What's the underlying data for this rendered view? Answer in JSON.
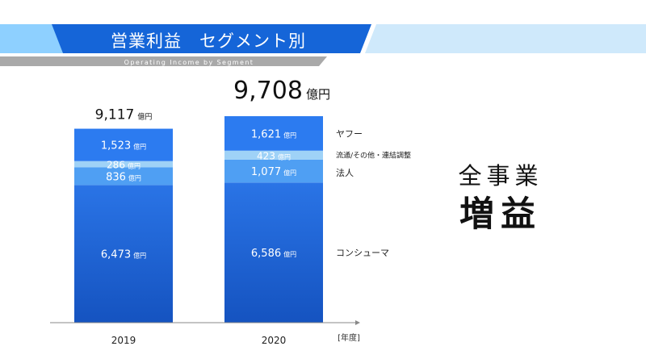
{
  "header": {
    "title": "営業利益　セグメント別",
    "subtitle": "Operating Income by Segment"
  },
  "summary": {
    "line1": "全事業",
    "line2": "増益"
  },
  "colors": {
    "banner": "#1565d8",
    "yahoo": "#2c7bf0",
    "distribution": "#9fd2f7",
    "corporate": "#4f9ff3",
    "consumer": "#1f63d3",
    "axis": "#888888"
  },
  "chart_data": {
    "type": "bar",
    "stacked": true,
    "categories": [
      "2019",
      "2020"
    ],
    "unit": "億円",
    "x_unit_label": "[年度]",
    "totals": [
      9117,
      9708
    ],
    "total_labels": [
      "9,117",
      "9,708"
    ],
    "series": [
      {
        "name": "コンシューマ",
        "color": "#1f63d3",
        "values": [
          6473,
          6586
        ],
        "labels": [
          "6,473",
          "6,586"
        ]
      },
      {
        "name": "法人",
        "color": "#4f9ff3",
        "values": [
          836,
          1077
        ],
        "labels": [
          "836",
          "1,077"
        ]
      },
      {
        "name": "流通/その他・連結調整",
        "color": "#9fd2f7",
        "values": [
          286,
          423
        ],
        "labels": [
          "286",
          "423"
        ]
      },
      {
        "name": "ヤフー",
        "color": "#2c7bf0",
        "values": [
          1523,
          1621
        ],
        "labels": [
          "1,523",
          "1,621"
        ]
      }
    ],
    "ylim": [
      0,
      9708
    ],
    "grid": false,
    "legend": "right"
  }
}
